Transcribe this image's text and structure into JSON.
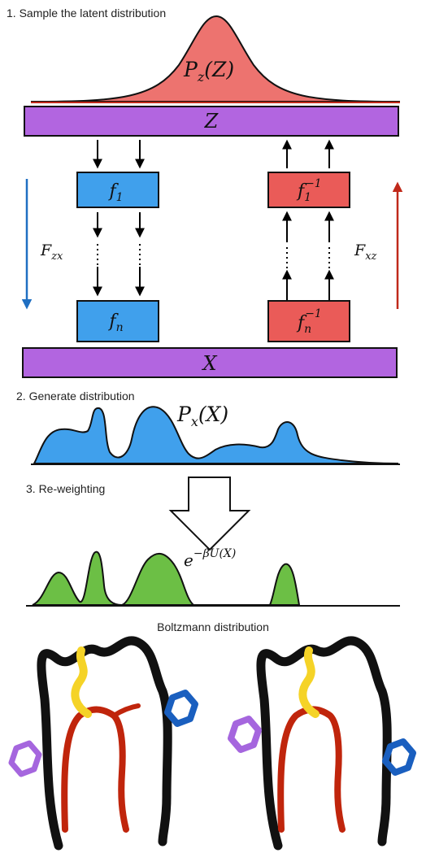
{
  "steps": {
    "step1": "1. Sample the latent distribution",
    "step2": "2. Generate distribution",
    "step3": "3. Re-weighting",
    "boltzmann": "Boltzmann distribution"
  },
  "bars": {
    "latent": "Z",
    "data": "X"
  },
  "distributions": {
    "latent_base": "P",
    "latent_sub": "z",
    "latent_arg": "(Z)",
    "generated_base": "P",
    "generated_sub": "x",
    "generated_arg": "(X)",
    "weight_base": "e",
    "weight_exp": "−βU(X)"
  },
  "forward": {
    "label_base": "F",
    "label_sub": "zx",
    "blocks": [
      {
        "base": "f",
        "sub": "1"
      },
      {
        "base": "f",
        "sub": "n"
      }
    ]
  },
  "inverse": {
    "label_base": "F",
    "label_sub": "xz",
    "blocks": [
      {
        "base": "f",
        "sub": "1",
        "sup": "−1"
      },
      {
        "base": "f",
        "sub": "n",
        "sup": "−1"
      }
    ]
  },
  "colors": {
    "purple": "#b265e0",
    "blue": "#40a0ec",
    "red": "#ea5b58",
    "green": "#6cbf45",
    "blue_arrow": "#1f6fc2",
    "red_arrow": "#c0291a",
    "mol_black": "#111111",
    "mol_red": "#c0250c",
    "mol_yellow": "#f5d327",
    "mol_blue": "#1a5fbf",
    "mol_purple": "#a566de"
  }
}
